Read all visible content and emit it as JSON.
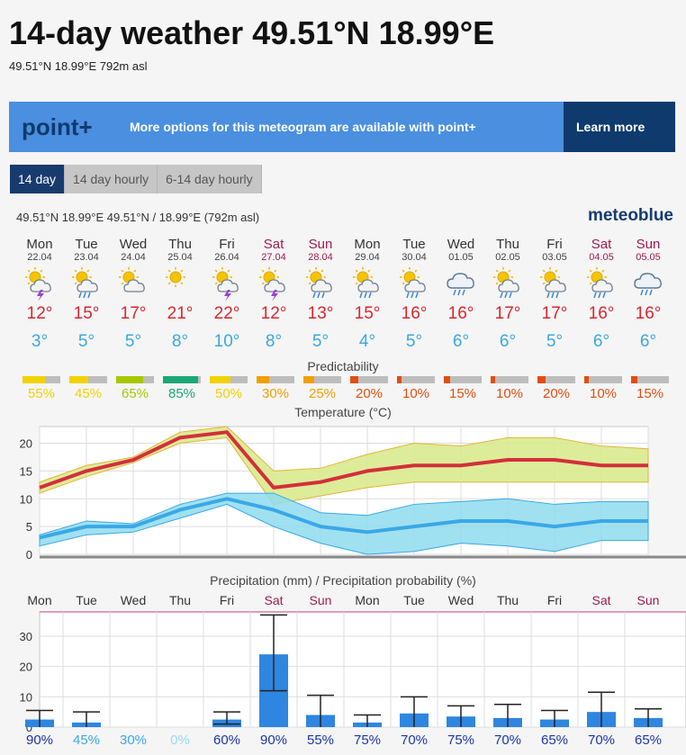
{
  "page": {
    "title": "14-day weather 49.51°N 18.99°E",
    "subtitle": "49.51°N 18.99°E 792m asl"
  },
  "banner": {
    "logo": "point+",
    "text": "More options for this meteogram are available with point+",
    "button": "Learn more"
  },
  "tabs": [
    {
      "label": "14 day",
      "active": true
    },
    {
      "label": "14 day hourly",
      "active": false
    },
    {
      "label": "6-14 day hourly",
      "active": false
    }
  ],
  "location_line": "49.51°N 18.99°E  49.51°N / 18.99°E (792m asl)",
  "brand": "meteoblue",
  "days": [
    {
      "name": "Mon",
      "date": "22.04",
      "icon": "sun-cloud-storm-icon",
      "max": "12°",
      "min": "3°",
      "pred": "55%",
      "pred_value": 55,
      "pred_color": "#f2d200",
      "weekend": false
    },
    {
      "name": "Tue",
      "date": "23.04",
      "icon": "sun-cloud-rain-icon",
      "max": "15°",
      "min": "5°",
      "pred": "45%",
      "pred_value": 45,
      "pred_color": "#f2d200",
      "weekend": false
    },
    {
      "name": "Wed",
      "date": "24.04",
      "icon": "sun-cloud-icon",
      "max": "17°",
      "min": "5°",
      "pred": "65%",
      "pred_value": 65,
      "pred_color": "#a9c700",
      "weekend": false
    },
    {
      "name": "Thu",
      "date": "25.04",
      "icon": "sun-icon",
      "max": "21°",
      "min": "8°",
      "pred": "85%",
      "pred_value": 85,
      "pred_color": "#1ba876",
      "weekend": false
    },
    {
      "name": "Fri",
      "date": "26.04",
      "icon": "sun-cloud-storm-icon",
      "max": "22°",
      "min": "10°",
      "pred": "50%",
      "pred_value": 50,
      "pred_color": "#f2d200",
      "weekend": false
    },
    {
      "name": "Sat",
      "date": "27.04",
      "icon": "sun-cloud-storm-icon",
      "max": "12°",
      "min": "8°",
      "pred": "30%",
      "pred_value": 30,
      "pred_color": "#f0a000",
      "weekend": true
    },
    {
      "name": "Sun",
      "date": "28.04",
      "icon": "sun-cloud-rain-icon",
      "max": "13°",
      "min": "5°",
      "pred": "25%",
      "pred_value": 25,
      "pred_color": "#f0a000",
      "weekend": true
    },
    {
      "name": "Mon",
      "date": "29.04",
      "icon": "sun-cloud-rain-icon",
      "max": "15°",
      "min": "4°",
      "pred": "20%",
      "pred_value": 20,
      "pred_color": "#e04e10",
      "weekend": false
    },
    {
      "name": "Tue",
      "date": "30.04",
      "icon": "sun-cloud-rain-icon",
      "max": "16°",
      "min": "5°",
      "pred": "10%",
      "pred_value": 10,
      "pred_color": "#e04e10",
      "weekend": false
    },
    {
      "name": "Wed",
      "date": "01.05",
      "icon": "cloud-rain-icon",
      "max": "16°",
      "min": "6°",
      "pred": "15%",
      "pred_value": 15,
      "pred_color": "#e04e10",
      "weekend": false
    },
    {
      "name": "Thu",
      "date": "02.05",
      "icon": "sun-cloud-rain-icon",
      "max": "17°",
      "min": "6°",
      "pred": "10%",
      "pred_value": 10,
      "pred_color": "#e04e10",
      "weekend": false
    },
    {
      "name": "Fri",
      "date": "03.05",
      "icon": "sun-cloud-rain-icon",
      "max": "17°",
      "min": "5°",
      "pred": "20%",
      "pred_value": 20,
      "pred_color": "#e04e10",
      "weekend": false
    },
    {
      "name": "Sat",
      "date": "04.05",
      "icon": "sun-cloud-rain-icon",
      "max": "16°",
      "min": "6°",
      "pred": "10%",
      "pred_value": 10,
      "pred_color": "#e04e10",
      "weekend": true
    },
    {
      "name": "Sun",
      "date": "05.05",
      "icon": "cloud-rain-icon",
      "max": "16°",
      "min": "6°",
      "pred": "15%",
      "pred_value": 15,
      "pred_color": "#e04e10",
      "weekend": true
    }
  ],
  "labels": {
    "predictability": "Predictability",
    "temperature": "Temperature (°C)",
    "precipitation": "Precipitation (mm) / Precipitation probability (%)"
  },
  "colors": {
    "max_line": "#d32f3a",
    "max_band": "#d9ea8e",
    "min_line": "#3aa8e6",
    "min_band": "#8fdcee",
    "precip_bar": "#2e86e0",
    "weekend": "#9a1b4e"
  },
  "chart_data": [
    {
      "type": "line",
      "title": "Temperature (°C)",
      "categories": [
        "Mon",
        "Tue",
        "Wed",
        "Thu",
        "Fri",
        "Sat",
        "Sun",
        "Mon",
        "Tue",
        "Wed",
        "Thu",
        "Fri",
        "Sat",
        "Sun"
      ],
      "ylim": [
        0,
        23
      ],
      "yticks": [
        0,
        5,
        10,
        15,
        20
      ],
      "grid": true,
      "series": [
        {
          "values": [
            12,
            15,
            17,
            21,
            22,
            12,
            13,
            15,
            16,
            16,
            17,
            17,
            16,
            16
          ],
          "band_high": [
            13,
            16,
            17.5,
            22,
            23,
            15,
            15.5,
            18,
            20,
            19.5,
            21,
            21,
            19.5,
            19
          ],
          "band_low": [
            11,
            14,
            16.5,
            20,
            21,
            9,
            10.5,
            12,
            13,
            13,
            13,
            13,
            13,
            13
          ]
        },
        {
          "values": [
            3,
            5,
            5,
            8,
            10,
            8,
            5,
            4,
            5,
            6,
            6,
            5,
            6,
            6
          ],
          "band_high": [
            3.5,
            6,
            5.5,
            9,
            11,
            11,
            7.5,
            7,
            9,
            9.5,
            10,
            9,
            9.5,
            9.5
          ],
          "band_low": [
            1.5,
            3.5,
            4,
            6.5,
            9,
            5,
            2,
            0,
            0.5,
            2,
            1.5,
            0.5,
            2.5,
            2.5
          ]
        }
      ]
    },
    {
      "type": "bar",
      "title": "Precipitation (mm) / Precipitation probability (%)",
      "categories": [
        "Mon",
        "Tue",
        "Wed",
        "Thu",
        "Fri",
        "Sat",
        "Sun",
        "Mon",
        "Tue",
        "Wed",
        "Thu",
        "Fri",
        "Sat",
        "Sun"
      ],
      "ylim": [
        0,
        38
      ],
      "yticks": [
        0,
        10,
        20,
        30
      ],
      "grid": true,
      "values": [
        2.5,
        1.5,
        0,
        0,
        2.5,
        24,
        4,
        1.5,
        4.5,
        3.5,
        3,
        2.5,
        5,
        3
      ],
      "range_low": [
        0,
        0,
        0,
        0,
        1,
        12,
        0,
        0,
        0,
        0,
        0,
        0,
        0,
        0
      ],
      "range_high": [
        5.5,
        5,
        0,
        0,
        5,
        37,
        10.5,
        4,
        10,
        7,
        7.5,
        5.5,
        11.5,
        6
      ],
      "probabilities": [
        "90%",
        "45%",
        "30%",
        "0%",
        "60%",
        "90%",
        "55%",
        "75%",
        "70%",
        "75%",
        "70%",
        "65%",
        "70%",
        "65%"
      ],
      "probability_values": [
        90,
        45,
        30,
        0,
        60,
        90,
        55,
        75,
        70,
        75,
        70,
        65,
        70,
        65
      ]
    }
  ]
}
